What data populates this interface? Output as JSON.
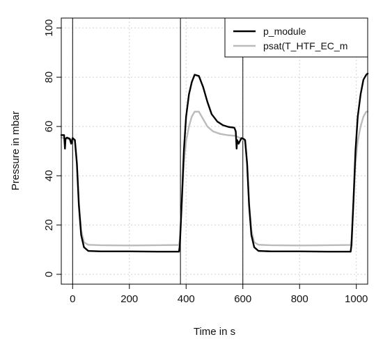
{
  "chart_data": {
    "type": "line",
    "title": "",
    "xlabel": "Time in s",
    "ylabel": "Pressure in mbar",
    "xlim": [
      -40,
      1040
    ],
    "ylim": [
      -4,
      104
    ],
    "x_ticks": [
      0,
      200,
      400,
      600,
      800,
      1000
    ],
    "y_ticks": [
      0,
      20,
      40,
      60,
      80,
      100
    ],
    "grid": true,
    "legend_position": "top-right",
    "vertical_lines": [
      0,
      380,
      600,
      1040
    ],
    "series": [
      {
        "name": "p_module",
        "color": "#000000",
        "points": [
          [
            -40,
            56.5
          ],
          [
            -30,
            56.5
          ],
          [
            -27,
            51
          ],
          [
            -25,
            55
          ],
          [
            -20,
            55.5
          ],
          [
            -10,
            55
          ],
          [
            -5,
            53
          ],
          [
            0,
            55.3
          ],
          [
            8,
            54.5
          ],
          [
            15,
            45
          ],
          [
            22,
            28
          ],
          [
            30,
            16
          ],
          [
            40,
            11
          ],
          [
            55,
            9.5
          ],
          [
            100,
            9.3
          ],
          [
            200,
            9.3
          ],
          [
            300,
            9.2
          ],
          [
            375,
            9.2
          ],
          [
            378,
            12
          ],
          [
            385,
            30
          ],
          [
            392,
            50
          ],
          [
            400,
            64
          ],
          [
            410,
            73
          ],
          [
            420,
            78
          ],
          [
            430,
            81
          ],
          [
            445,
            80.5
          ],
          [
            460,
            76
          ],
          [
            475,
            70
          ],
          [
            490,
            65
          ],
          [
            510,
            62
          ],
          [
            530,
            60.5
          ],
          [
            550,
            59.8
          ],
          [
            570,
            59.5
          ],
          [
            575,
            58
          ],
          [
            578,
            51
          ],
          [
            580,
            54.5
          ],
          [
            585,
            53
          ],
          [
            595,
            55.3
          ],
          [
            602,
            55
          ],
          [
            608,
            54.5
          ],
          [
            615,
            45
          ],
          [
            622,
            28
          ],
          [
            630,
            16
          ],
          [
            640,
            11
          ],
          [
            655,
            9.5
          ],
          [
            700,
            9.3
          ],
          [
            800,
            9.3
          ],
          [
            900,
            9.2
          ],
          [
            980,
            9.2
          ],
          [
            983,
            12
          ],
          [
            990,
            30
          ],
          [
            997,
            50
          ],
          [
            1005,
            64
          ],
          [
            1015,
            73
          ],
          [
            1025,
            79
          ],
          [
            1035,
            81
          ],
          [
            1040,
            81.5
          ]
        ]
      },
      {
        "name": "psat(T_HTF_EC_m",
        "color": "#bbbbbb",
        "points": [
          [
            -40,
            55.5
          ],
          [
            -20,
            55
          ],
          [
            0,
            54.5
          ],
          [
            8,
            54
          ],
          [
            15,
            45
          ],
          [
            22,
            29
          ],
          [
            30,
            18
          ],
          [
            40,
            13
          ],
          [
            55,
            12
          ],
          [
            100,
            11.8
          ],
          [
            200,
            11.7
          ],
          [
            300,
            11.8
          ],
          [
            375,
            11.9
          ],
          [
            378,
            14
          ],
          [
            385,
            30
          ],
          [
            392,
            45
          ],
          [
            400,
            54
          ],
          [
            410,
            60
          ],
          [
            420,
            64
          ],
          [
            430,
            66
          ],
          [
            445,
            66
          ],
          [
            460,
            63
          ],
          [
            475,
            60
          ],
          [
            495,
            58
          ],
          [
            520,
            57
          ],
          [
            545,
            56.5
          ],
          [
            575,
            56.2
          ],
          [
            595,
            55
          ],
          [
            608,
            54
          ],
          [
            615,
            45
          ],
          [
            622,
            29
          ],
          [
            630,
            18
          ],
          [
            640,
            13
          ],
          [
            655,
            12
          ],
          [
            700,
            11.8
          ],
          [
            800,
            11.7
          ],
          [
            900,
            11.8
          ],
          [
            980,
            11.9
          ],
          [
            983,
            14
          ],
          [
            990,
            30
          ],
          [
            997,
            45
          ],
          [
            1005,
            54
          ],
          [
            1015,
            60
          ],
          [
            1025,
            64
          ],
          [
            1035,
            66
          ],
          [
            1040,
            66
          ]
        ]
      }
    ]
  }
}
